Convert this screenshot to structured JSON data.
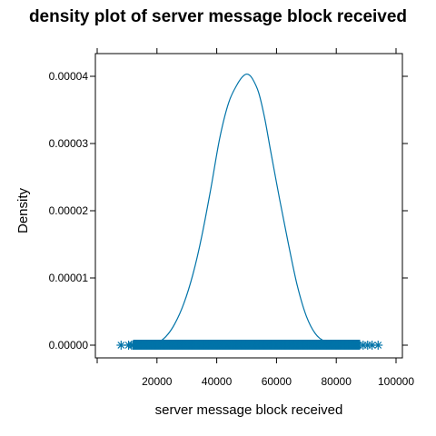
{
  "chart_data": {
    "type": "line",
    "title": "density plot of server message block received",
    "xlabel": "server message block received",
    "ylabel": "Density",
    "xlim": [
      0,
      100000
    ],
    "ylim": [
      0,
      4e-05
    ],
    "x_ticks": [
      {
        "value": 20000,
        "label": "20000"
      },
      {
        "value": 40000,
        "label": "40000"
      },
      {
        "value": 60000,
        "label": "60000"
      },
      {
        "value": 80000,
        "label": "80000"
      },
      {
        "value": 100000,
        "label": "100000"
      }
    ],
    "y_ticks": [
      {
        "value": 0,
        "label": "0.00000"
      },
      {
        "value": 1e-05,
        "label": "0.00001"
      },
      {
        "value": 2e-05,
        "label": "0.00002"
      },
      {
        "value": 3e-05,
        "label": "0.00003"
      },
      {
        "value": 4e-05,
        "label": "0.00004"
      }
    ],
    "grid": false,
    "color": "#0073A8",
    "density_curve": {
      "x": [
        9000,
        15000,
        20000,
        23000,
        26000,
        29000,
        32000,
        35000,
        38000,
        41000,
        44000,
        47000,
        49000,
        50500,
        52000,
        54000,
        56000,
        58000,
        61000,
        64000,
        67000,
        70000,
        73000,
        76000,
        79000,
        83000,
        88000,
        93000
      ],
      "y": [
        0.0,
        1e-07,
        4e-07,
        1.3e-06,
        3.2e-06,
        6.2e-06,
        1.05e-05,
        1.62e-05,
        2.32e-05,
        3.08e-05,
        3.61e-05,
        3.89e-05,
        4.01e-05,
        4.03e-05,
        3.96e-05,
        3.76e-05,
        3.39e-05,
        2.9e-05,
        2.18e-05,
        1.5e-05,
        8.8e-06,
        4.3e-06,
        1.7e-06,
        6e-07,
        2e-07,
        1e-07,
        0.0,
        0.0
      ]
    },
    "rug": {
      "range": [
        12000,
        88000
      ],
      "outliers": [
        8000,
        10500,
        11500,
        86000,
        87500,
        89000,
        90500,
        92000,
        94000
      ]
    }
  }
}
